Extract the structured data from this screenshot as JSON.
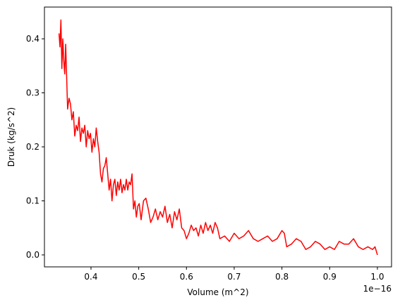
{
  "chart_data": {
    "type": "line",
    "x_label": "Volume (m^2)",
    "y_label": "Druk (kg/s^2)",
    "x_offset_label": "1e−16",
    "xlim": [
      0.3025,
      1.0296
    ],
    "ylim": [
      -0.0222,
      0.4588
    ],
    "xticks": [
      0.4,
      0.5,
      0.6,
      0.7,
      0.8,
      0.9,
      {
        "value": 1,
        "label": "1.0"
      }
    ],
    "yticks": [
      {
        "value": 0,
        "label": "0.0"
      },
      0.1,
      0.2,
      0.3,
      0.4
    ],
    "grid": false,
    "series": [
      {
        "color": "#ff0000",
        "x": [
          0.333,
          0.335,
          0.337,
          0.339,
          0.341,
          0.343,
          0.345,
          0.347,
          0.349,
          0.351,
          0.354,
          0.357,
          0.36,
          0.363,
          0.366,
          0.369,
          0.372,
          0.375,
          0.378,
          0.381,
          0.384,
          0.387,
          0.39,
          0.393,
          0.396,
          0.399,
          0.402,
          0.405,
          0.408,
          0.411,
          0.414,
          0.417,
          0.42,
          0.423,
          0.426,
          0.429,
          0.432,
          0.435,
          0.438,
          0.441,
          0.444,
          0.447,
          0.45,
          0.453,
          0.456,
          0.459,
          0.462,
          0.465,
          0.468,
          0.471,
          0.474,
          0.477,
          0.48,
          0.483,
          0.486,
          0.489,
          0.492,
          0.495,
          0.498,
          0.501,
          0.505,
          0.51,
          0.515,
          0.52,
          0.525,
          0.53,
          0.535,
          0.54,
          0.545,
          0.55,
          0.555,
          0.56,
          0.565,
          0.57,
          0.575,
          0.58,
          0.585,
          0.59,
          0.595,
          0.6,
          0.605,
          0.61,
          0.615,
          0.62,
          0.625,
          0.63,
          0.635,
          0.64,
          0.645,
          0.65,
          0.655,
          0.66,
          0.665,
          0.67,
          0.68,
          0.69,
          0.7,
          0.71,
          0.72,
          0.73,
          0.74,
          0.75,
          0.76,
          0.77,
          0.78,
          0.79,
          0.8,
          0.805,
          0.81,
          0.82,
          0.83,
          0.84,
          0.85,
          0.86,
          0.87,
          0.88,
          0.89,
          0.9,
          0.91,
          0.92,
          0.93,
          0.94,
          0.95,
          0.96,
          0.97,
          0.98,
          0.99,
          0.995,
          1.0
        ],
        "values": [
          0.41,
          0.385,
          0.435,
          0.345,
          0.4,
          0.36,
          0.335,
          0.39,
          0.33,
          0.27,
          0.29,
          0.28,
          0.25,
          0.265,
          0.22,
          0.24,
          0.23,
          0.255,
          0.21,
          0.235,
          0.225,
          0.24,
          0.2,
          0.23,
          0.215,
          0.225,
          0.19,
          0.215,
          0.2,
          0.235,
          0.21,
          0.19,
          0.15,
          0.135,
          0.16,
          0.165,
          0.18,
          0.15,
          0.12,
          0.14,
          0.1,
          0.13,
          0.14,
          0.11,
          0.135,
          0.12,
          0.14,
          0.115,
          0.13,
          0.12,
          0.14,
          0.12,
          0.135,
          0.13,
          0.15,
          0.085,
          0.1,
          0.07,
          0.09,
          0.095,
          0.065,
          0.1,
          0.105,
          0.085,
          0.06,
          0.07,
          0.085,
          0.065,
          0.08,
          0.07,
          0.09,
          0.06,
          0.075,
          0.05,
          0.08,
          0.065,
          0.085,
          0.05,
          0.045,
          0.03,
          0.04,
          0.055,
          0.045,
          0.05,
          0.035,
          0.055,
          0.04,
          0.06,
          0.045,
          0.055,
          0.04,
          0.06,
          0.05,
          0.03,
          0.035,
          0.025,
          0.04,
          0.03,
          0.035,
          0.045,
          0.03,
          0.025,
          0.03,
          0.035,
          0.025,
          0.03,
          0.045,
          0.04,
          0.015,
          0.02,
          0.03,
          0.025,
          0.01,
          0.015,
          0.025,
          0.02,
          0.01,
          0.015,
          0.01,
          0.025,
          0.02,
          0.02,
          0.03,
          0.015,
          0.01,
          0.015,
          0.01,
          0.015,
          0.0
        ]
      }
    ]
  }
}
